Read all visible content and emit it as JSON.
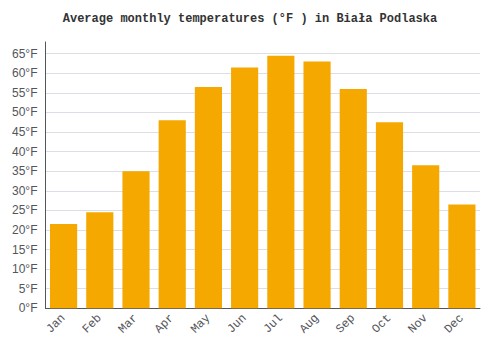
{
  "chart_data": {
    "type": "bar",
    "title": "Average monthly temperatures (°F ) in Biała Podlaska",
    "categories": [
      "Jan",
      "Feb",
      "Mar",
      "Apr",
      "May",
      "Jun",
      "Jul",
      "Aug",
      "Sep",
      "Oct",
      "Nov",
      "Dec"
    ],
    "values": [
      21.5,
      24.5,
      35.0,
      48.0,
      56.5,
      61.5,
      64.5,
      63.0,
      56.0,
      47.5,
      36.5,
      26.5
    ],
    "color": "#F5A800",
    "ylim": [
      0,
      68
    ],
    "yticks": [
      {
        "value": 0,
        "label": "0°F"
      },
      {
        "value": 5,
        "label": "5°F"
      },
      {
        "value": 10,
        "label": "10°F"
      },
      {
        "value": 15,
        "label": "15°F"
      },
      {
        "value": 20,
        "label": "20°F"
      },
      {
        "value": 25,
        "label": "25°F"
      },
      {
        "value": 30,
        "label": "30°F"
      },
      {
        "value": 35,
        "label": "35°F"
      },
      {
        "value": 40,
        "label": "40°F"
      },
      {
        "value": 45,
        "label": "45°F"
      },
      {
        "value": 50,
        "label": "50°F"
      },
      {
        "value": 55,
        "label": "55°F"
      },
      {
        "value": 60,
        "label": "60°F"
      },
      {
        "value": 65,
        "label": "65°F"
      }
    ],
    "grid": true
  }
}
